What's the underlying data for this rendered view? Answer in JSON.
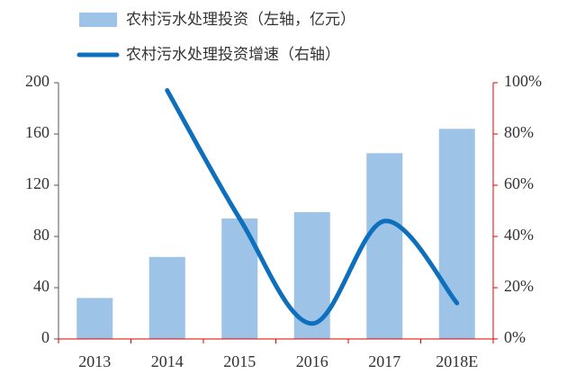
{
  "chart_data": {
    "type": "bar-line",
    "categories": [
      "2013",
      "2014",
      "2015",
      "2016",
      "2017",
      "2018E"
    ],
    "series": [
      {
        "name": "农村污水处理投资（左轴，亿元）",
        "type": "bar",
        "color": "#9dc3e6",
        "values": [
          32,
          64,
          94,
          99,
          145,
          164
        ]
      },
      {
        "name": "农村污水处理投资增速（右轴）",
        "type": "line",
        "axis": "y2",
        "color": "#0e6fbd",
        "values": [
          null,
          97,
          47,
          6,
          46,
          14
        ]
      }
    ],
    "ylim": [
      0,
      200
    ],
    "yticks": [
      0,
      40,
      80,
      120,
      160,
      200
    ],
    "y2lim": [
      0,
      100
    ],
    "y2ticks": [
      {
        "value": 0,
        "label": "0%"
      },
      {
        "value": 20,
        "label": "20%"
      },
      {
        "value": 40,
        "label": "40%"
      },
      {
        "value": 60,
        "label": "60%"
      },
      {
        "value": 80,
        "label": "80%"
      },
      {
        "value": 100,
        "label": "100%"
      }
    ],
    "y2color": "#e00000"
  }
}
